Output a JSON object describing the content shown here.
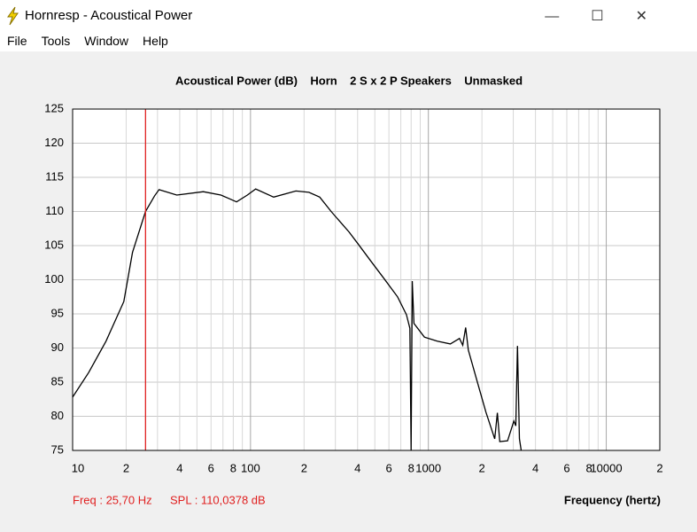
{
  "window": {
    "title": "Hornresp - Acoustical Power"
  },
  "menu": [
    "File",
    "Tools",
    "Window",
    "Help"
  ],
  "chart_data": {
    "type": "line",
    "title": "Acoustical Power (dB)    Horn    2 S x 2 P Speakers    Unmasked",
    "x_label": "Frequency (hertz)",
    "log_x": true,
    "grid": true,
    "color": "#000000",
    "xlim": [
      10,
      20000
    ],
    "ylim": [
      75,
      125
    ],
    "yticks": [
      75,
      80,
      85,
      90,
      95,
      100,
      105,
      110,
      115,
      120,
      125
    ],
    "xticks": [
      10,
      {
        "value": 20,
        "label": "2"
      },
      {
        "value": 40,
        "label": "4"
      },
      {
        "value": 60,
        "label": "6"
      },
      {
        "value": 80,
        "label": "8"
      },
      100,
      {
        "value": 200,
        "label": "2"
      },
      {
        "value": 400,
        "label": "4"
      },
      {
        "value": 600,
        "label": "6"
      },
      {
        "value": 800,
        "label": "8"
      },
      1000,
      {
        "value": 2000,
        "label": "2"
      },
      {
        "value": 4000,
        "label": "4"
      },
      {
        "value": 6000,
        "label": "6"
      },
      {
        "value": 8000,
        "label": "8"
      },
      10000,
      {
        "value": 20000,
        "label": "2"
      }
    ],
    "minor_xticks": [
      30,
      50,
      70,
      90,
      300,
      500,
      700,
      900,
      3000,
      5000,
      7000,
      9000
    ],
    "x": [
      10,
      12.3,
      15.4,
      19.4,
      21.7,
      25.7,
      28.9,
      30.6,
      38.5,
      54.3,
      68.2,
      83.5,
      96,
      107,
      135,
      180,
      213,
      245,
      284,
      319,
      358,
      401,
      476,
      566,
      671,
      753,
      787,
      800,
      812,
      830,
      950,
      1122,
      1329,
      1496,
      1560,
      1620,
      1678,
      1881,
      2107,
      2360,
      2442,
      2520,
      2786,
      3022,
      3100,
      3170,
      3250,
      3327
    ],
    "values": [
      82.8,
      86.4,
      91,
      96.8,
      104,
      110,
      112.3,
      113.2,
      112.4,
      112.9,
      112.4,
      111.4,
      112.4,
      113.3,
      112.1,
      113,
      112.8,
      112.1,
      110,
      108.5,
      107,
      105.3,
      102.7,
      100.1,
      97.5,
      94.9,
      92.9,
      75,
      99.8,
      93.6,
      91.6,
      91,
      90.6,
      91.4,
      90.4,
      93,
      89.7,
      85.1,
      80.6,
      76.7,
      80.5,
      76.3,
      76.4,
      79.3,
      78.6,
      90.3,
      76.7,
      75
    ],
    "cursor": {
      "x": 25.7,
      "freq_label": "Freq : 25,70 Hz",
      "spl_label": "SPL : 110,0378 dB"
    }
  }
}
